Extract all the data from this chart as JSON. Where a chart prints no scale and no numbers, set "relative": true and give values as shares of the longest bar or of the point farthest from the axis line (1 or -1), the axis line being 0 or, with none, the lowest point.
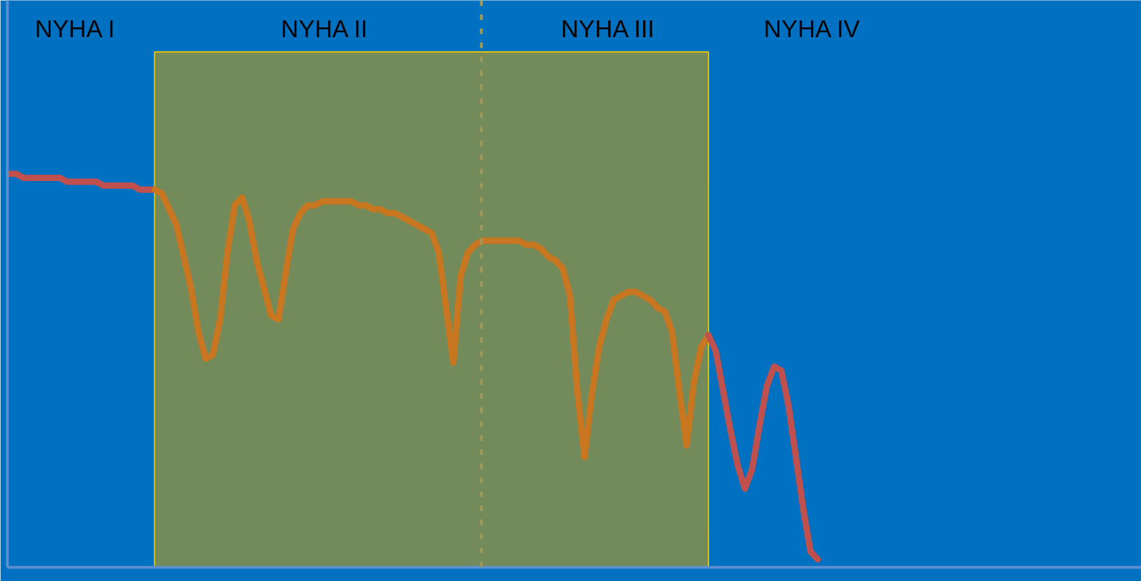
{
  "chart_data": {
    "type": "line",
    "relative": true,
    "marker": "none",
    "line_style": "solid",
    "categories": [
      null,
      null,
      null,
      null,
      null,
      null,
      null,
      null,
      null,
      null,
      null,
      null,
      null,
      null,
      null,
      null,
      null,
      null,
      null,
      null,
      null,
      null,
      null,
      null,
      null,
      null,
      null,
      null,
      null,
      null,
      null,
      null,
      null,
      null,
      null,
      null,
      null,
      null,
      null,
      null,
      null,
      null,
      null,
      null,
      null,
      null,
      null,
      null,
      null,
      null,
      null,
      null,
      null,
      null,
      null,
      null,
      null,
      null,
      null,
      null,
      null,
      null,
      null,
      null,
      null,
      null,
      null,
      null,
      null,
      null,
      null,
      null,
      null,
      null,
      null,
      null,
      null,
      null,
      null,
      null,
      null,
      null,
      null,
      null,
      null,
      null,
      null,
      null,
      null,
      null,
      null,
      null,
      null,
      null,
      null,
      null,
      null,
      null,
      null,
      null,
      null,
      null,
      null,
      null,
      null,
      null,
      null,
      null,
      null,
      null,
      null,
      null
    ],
    "series": [
      {
        "color": "#c0504d",
        "values": [
          1.0,
          1.0,
          0.99,
          0.99,
          0.99,
          0.99,
          0.99,
          0.99,
          0.98,
          0.98,
          0.98,
          0.98,
          0.98,
          0.97,
          0.97,
          0.97,
          0.97,
          0.97,
          0.96,
          0.96,
          0.96,
          null,
          null,
          null,
          null,
          null,
          null,
          null,
          null,
          null,
          null,
          null,
          null,
          null,
          null,
          null,
          null,
          null,
          null,
          null,
          null,
          null,
          null,
          null,
          null,
          null,
          null,
          null,
          null,
          null,
          null,
          null,
          null,
          null,
          null,
          null,
          null,
          null,
          null,
          null,
          null,
          null,
          null,
          null,
          null,
          null,
          null,
          null,
          null,
          null,
          null,
          null,
          null,
          null,
          null,
          null,
          null,
          null,
          null,
          null,
          null,
          null,
          null,
          null,
          null,
          null,
          null,
          null,
          null,
          null,
          null,
          null,
          null,
          null,
          null,
          null,
          null,
          null,
          null,
          null,
          null,
          null,
          null,
          null,
          null,
          null,
          null,
          null,
          null,
          null,
          null,
          null
        ]
      },
      {
        "color": "#c87620",
        "values": [
          null,
          null,
          null,
          null,
          null,
          null,
          null,
          null,
          null,
          null,
          null,
          null,
          null,
          null,
          null,
          null,
          null,
          null,
          null,
          null,
          0.96,
          0.95,
          0.91,
          0.87,
          0.79,
          0.71,
          0.6,
          0.53,
          0.54,
          0.63,
          0.8,
          0.92,
          0.94,
          0.88,
          0.78,
          0.71,
          0.64,
          0.63,
          0.75,
          0.86,
          0.9,
          0.92,
          0.92,
          0.93,
          0.93,
          0.93,
          0.93,
          0.93,
          0.92,
          0.92,
          0.91,
          0.91,
          0.9,
          0.9,
          0.89,
          0.88,
          0.87,
          0.86,
          0.85,
          0.8,
          0.66,
          0.52,
          0.74,
          0.8,
          0.82,
          0.83,
          0.83,
          0.83,
          0.83,
          0.83,
          0.83,
          0.82,
          0.82,
          0.81,
          0.79,
          0.78,
          0.76,
          0.69,
          0.45,
          0.28,
          0.44,
          0.56,
          0.63,
          0.68,
          0.69,
          0.7,
          0.7,
          0.69,
          0.68,
          0.66,
          0.65,
          0.6,
          0.45,
          0.31,
          0.47,
          0.56,
          0.59,
          null,
          null,
          null,
          null,
          null,
          null,
          null,
          null,
          null,
          null,
          null,
          null,
          null,
          null,
          null
        ]
      },
      {
        "color": "#c0504d",
        "values": [
          null,
          null,
          null,
          null,
          null,
          null,
          null,
          null,
          null,
          null,
          null,
          null,
          null,
          null,
          null,
          null,
          null,
          null,
          null,
          null,
          null,
          null,
          null,
          null,
          null,
          null,
          null,
          null,
          null,
          null,
          null,
          null,
          null,
          null,
          null,
          null,
          null,
          null,
          null,
          null,
          null,
          null,
          null,
          null,
          null,
          null,
          null,
          null,
          null,
          null,
          null,
          null,
          null,
          null,
          null,
          null,
          null,
          null,
          null,
          null,
          null,
          null,
          null,
          null,
          null,
          null,
          null,
          null,
          null,
          null,
          null,
          null,
          null,
          null,
          null,
          null,
          null,
          null,
          null,
          null,
          null,
          null,
          null,
          null,
          null,
          null,
          null,
          null,
          null,
          null,
          null,
          null,
          null,
          null,
          null,
          null,
          0.59,
          0.55,
          0.45,
          0.35,
          0.26,
          0.2,
          0.25,
          0.36,
          0.46,
          0.51,
          0.5,
          0.41,
          0.28,
          0.15,
          0.04,
          0.02
        ]
      }
    ],
    "annotations": [
      "NYHA I",
      "NYHA II",
      "NYHA III",
      "NYHA IV"
    ]
  }
}
